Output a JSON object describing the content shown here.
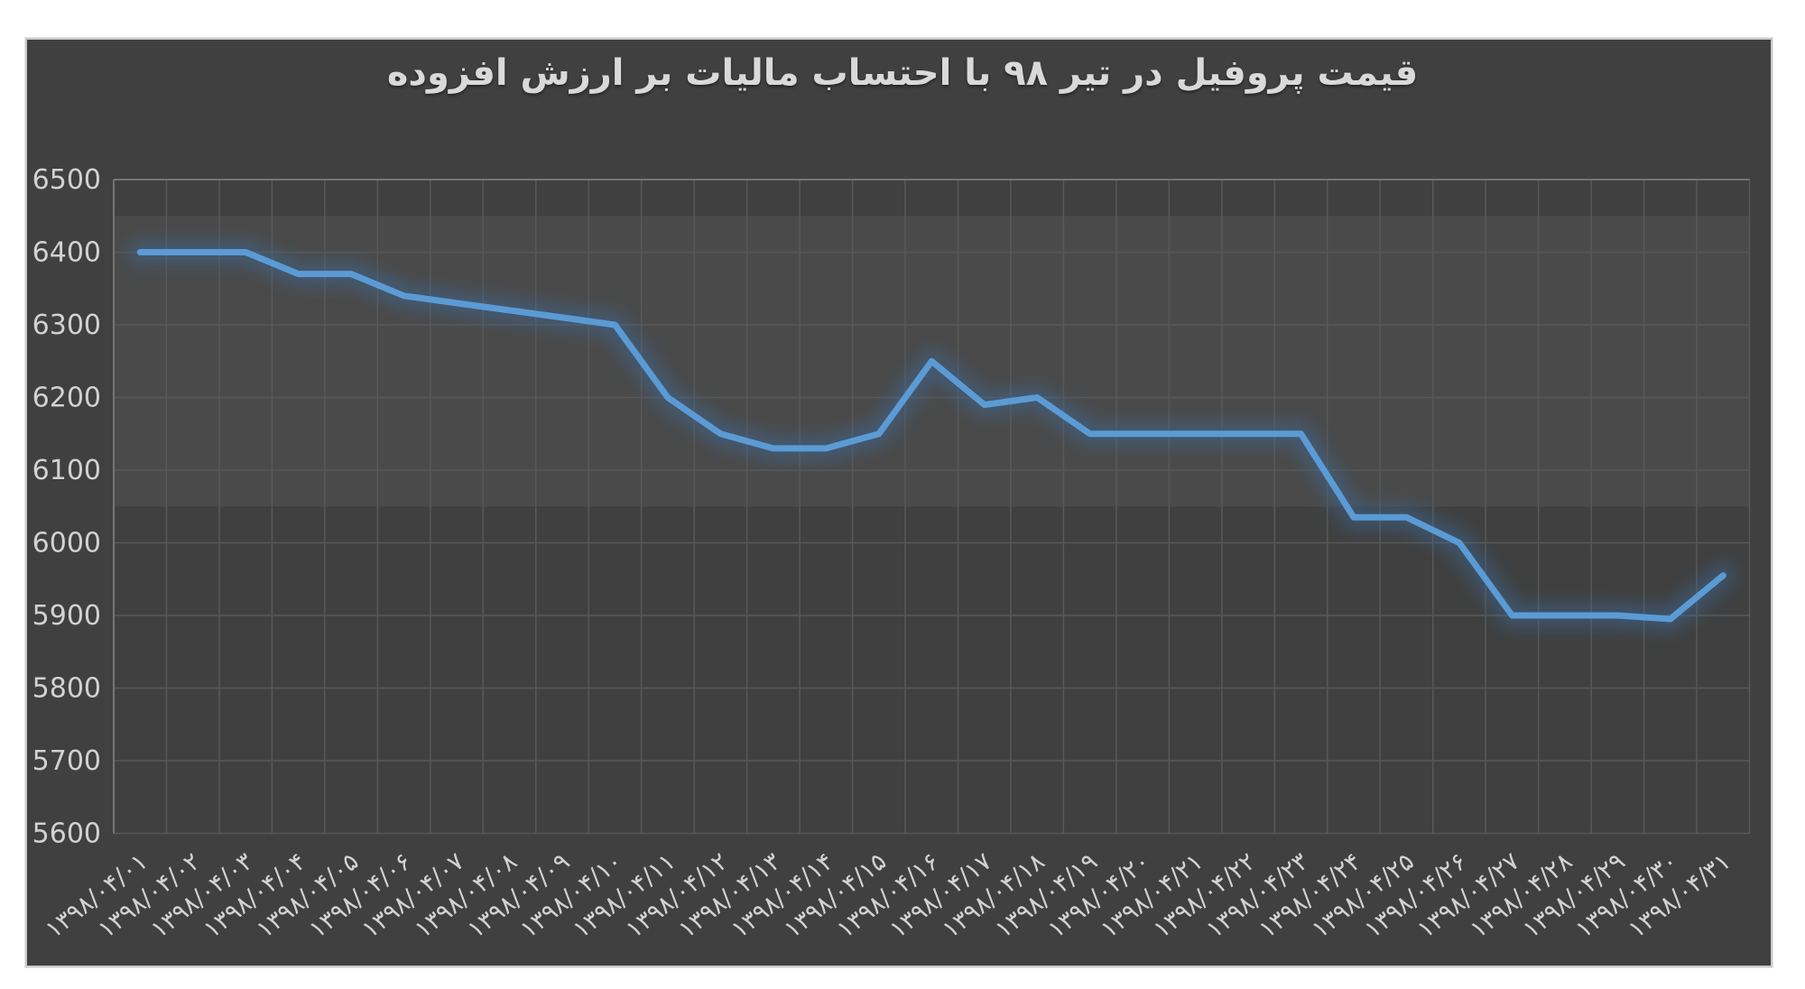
{
  "page": {
    "background_color": "#ffffff",
    "chart_background_color": "#404040",
    "chart_border_color": "#c9c9c9"
  },
  "chart_data": {
    "type": "line",
    "title": "قیمت پروفیل در تیر ۹۸ با احتساب مالیات بر ارزش افزوده",
    "categories": [
      "۱۳۹۸/۰۴/۰۱",
      "۱۳۹۸/۰۴/۰۲",
      "۱۳۹۸/۰۴/۰۳",
      "۱۳۹۸/۰۴/۰۴",
      "۱۳۹۸/۰۴/۰۵",
      "۱۳۹۸/۰۴/۰۶",
      "۱۳۹۸/۰۴/۰۷",
      "۱۳۹۸/۰۴/۰۸",
      "۱۳۹۸/۰۴/۰۹",
      "۱۳۹۸/۰۴/۱۰",
      "۱۳۹۸/۰۴/۱۱",
      "۱۳۹۸/۰۴/۱۲",
      "۱۳۹۸/۰۴/۱۳",
      "۱۳۹۸/۰۴/۱۴",
      "۱۳۹۸/۰۴/۱۵",
      "۱۳۹۸/۰۴/۱۶",
      "۱۳۹۸/۰۴/۱۷",
      "۱۳۹۸/۰۴/۱۸",
      "۱۳۹۸/۰۴/۱۹",
      "۱۳۹۸/۰۴/۲۰",
      "۱۳۹۸/۰۴/۲۱",
      "۱۳۹۸/۰۴/۲۲",
      "۱۳۹۸/۰۴/۲۳",
      "۱۳۹۸/۰۴/۲۴",
      "۱۳۹۸/۰۴/۲۵",
      "۱۳۹۸/۰۴/۲۶",
      "۱۳۹۸/۰۴/۲۷",
      "۱۳۹۸/۰۴/۲۸",
      "۱۳۹۸/۰۴/۲۹",
      "۱۳۹۸/۰۴/۳۰",
      "۱۳۹۸/۰۴/۳۱"
    ],
    "values": [
      6400,
      6400,
      6400,
      6370,
      6370,
      6340,
      6330,
      6320,
      6310,
      6300,
      6200,
      6150,
      6130,
      6130,
      6150,
      6250,
      6190,
      6200,
      6150,
      6150,
      6150,
      6150,
      6150,
      6035,
      6035,
      6000,
      5900,
      5900,
      5900,
      5895,
      5955
    ],
    "xlabel": "",
    "ylabel": "",
    "ylim": [
      5600,
      6500
    ],
    "ytick_step": 100,
    "ytick_labels": [
      "6500",
      "6400",
      "6300",
      "6200",
      "6100",
      "6000",
      "5900",
      "5800",
      "5700",
      "5600"
    ],
    "grid": "both",
    "legend": "none",
    "x_label_rotation_deg": -38,
    "highlight_band": {
      "value_from": 6050,
      "value_to": 6450,
      "color": "rgba(255,255,255,0.055)"
    },
    "line_color": "#5B9BD5",
    "glow_color": "#3a6ea5",
    "gridline_color": "#585858",
    "axis_line_color": "#757575",
    "axis_text_color": "#d2d2d2"
  }
}
